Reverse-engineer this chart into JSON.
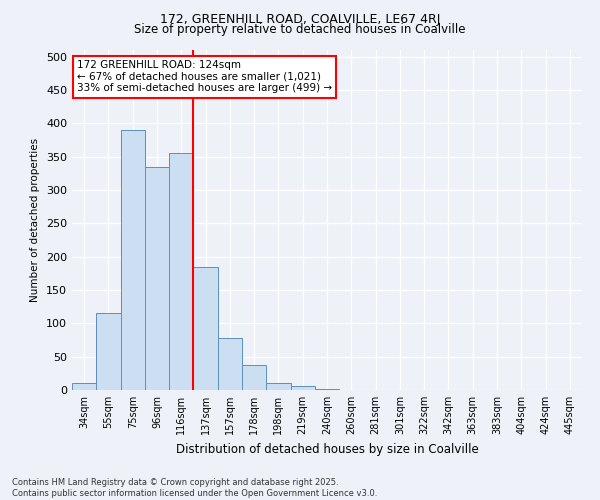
{
  "title": "172, GREENHILL ROAD, COALVILLE, LE67 4RJ",
  "subtitle": "Size of property relative to detached houses in Coalville",
  "xlabel": "Distribution of detached houses by size in Coalville",
  "ylabel": "Number of detached properties",
  "bar_labels": [
    "34sqm",
    "55sqm",
    "75sqm",
    "96sqm",
    "116sqm",
    "137sqm",
    "157sqm",
    "178sqm",
    "198sqm",
    "219sqm",
    "240sqm",
    "260sqm",
    "281sqm",
    "301sqm",
    "322sqm",
    "342sqm",
    "363sqm",
    "383sqm",
    "404sqm",
    "424sqm",
    "445sqm"
  ],
  "bar_values": [
    10,
    115,
    390,
    335,
    355,
    185,
    78,
    38,
    11,
    6,
    2,
    0,
    0,
    0,
    0,
    0,
    0,
    0,
    0,
    0,
    0
  ],
  "bar_color": "#ccdff2",
  "bar_edge_color": "#5a8fc0",
  "vline_x_index": 5,
  "vline_color": "red",
  "annotation_text": "172 GREENHILL ROAD: 124sqm\n← 67% of detached houses are smaller (1,021)\n33% of semi-detached houses are larger (499) →",
  "annotation_box_color": "white",
  "annotation_box_edge": "red",
  "ylim": [
    0,
    510
  ],
  "yticks": [
    0,
    50,
    100,
    150,
    200,
    250,
    300,
    350,
    400,
    450,
    500
  ],
  "footer1": "Contains HM Land Registry data © Crown copyright and database right 2025.",
  "footer2": "Contains public sector information licensed under the Open Government Licence v3.0.",
  "bg_color": "#eef2f8",
  "plot_bg_color": "#eef2f8",
  "title_fontsize": 9,
  "subtitle_fontsize": 8.5
}
